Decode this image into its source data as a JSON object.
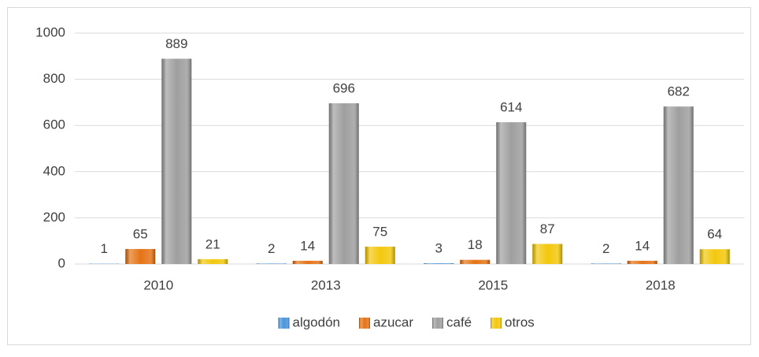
{
  "chart_data": {
    "type": "bar",
    "categories": [
      "2010",
      "2013",
      "2015",
      "2018"
    ],
    "series": [
      {
        "name": "algodón",
        "color": "#3f8fd8",
        "values": [
          1,
          2,
          3,
          2
        ]
      },
      {
        "name": "azucar",
        "color": "#e46c0a",
        "values": [
          65,
          14,
          18,
          14
        ]
      },
      {
        "name": "café",
        "color": "#9a9a9a",
        "values": [
          889,
          696,
          614,
          682
        ]
      },
      {
        "name": "otros",
        "color": "#f2c500",
        "values": [
          21,
          75,
          87,
          64
        ]
      }
    ],
    "ylim": [
      0,
      1000
    ],
    "yticks": [
      0,
      200,
      400,
      600,
      800,
      1000
    ],
    "grid": true,
    "legend": "bottom"
  }
}
